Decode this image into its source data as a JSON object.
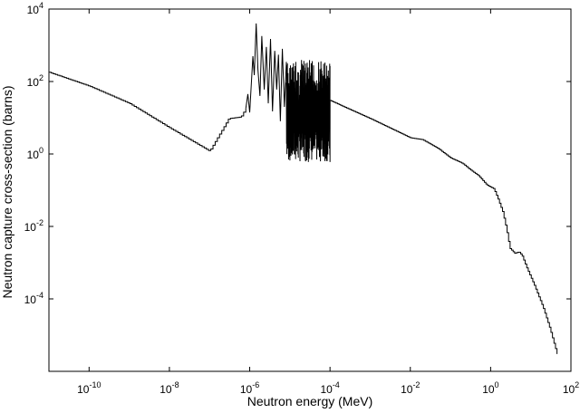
{
  "chart_data": {
    "type": "line",
    "title": "",
    "xlabel": "Neutron energy (MeV)",
    "ylabel": "Neutron capture cross-section (barns)",
    "xscale": "log",
    "yscale": "log",
    "xlim": [
      1e-11,
      100
    ],
    "ylim": [
      1e-06,
      10000
    ],
    "x_ticks": [
      {
        "value": 1e-10,
        "base": "10",
        "exp": "-10"
      },
      {
        "value": 1e-08,
        "base": "10",
        "exp": "-8"
      },
      {
        "value": 1e-06,
        "base": "10",
        "exp": "-6"
      },
      {
        "value": 0.0001,
        "base": "10",
        "exp": "-4"
      },
      {
        "value": 0.01,
        "base": "10",
        "exp": "-2"
      },
      {
        "value": 1,
        "base": "10",
        "exp": "0"
      },
      {
        "value": 100,
        "base": "10",
        "exp": "2"
      }
    ],
    "y_ticks": [
      {
        "value": 0.0001,
        "base": "10",
        "exp": "-4"
      },
      {
        "value": 0.01,
        "base": "10",
        "exp": "-2"
      },
      {
        "value": 1,
        "base": "10",
        "exp": "0"
      },
      {
        "value": 100,
        "base": "10",
        "exp": "2"
      },
      {
        "value": 10000,
        "base": "10",
        "exp": "4"
      }
    ],
    "grid": false,
    "series": [
      {
        "name": "capture cross-section",
        "color": "#000000",
        "smooth_points": [
          [
            1e-11,
            180
          ],
          [
            1e-10,
            75
          ],
          [
            1e-09,
            25
          ],
          [
            1e-08,
            5.3
          ],
          [
            1e-07,
            1.2
          ],
          [
            3e-07,
            9.5
          ],
          [
            6e-07,
            10.5
          ],
          [
            8e-07,
            18
          ]
        ],
        "resonance_region": [
          [
            8e-07,
            18
          ],
          [
            9e-07,
            45
          ],
          [
            1e-06,
            14
          ],
          [
            1.2e-06,
            500
          ],
          [
            1.3e-06,
            150
          ],
          [
            1.45e-06,
            4000
          ],
          [
            1.6e-06,
            220
          ],
          [
            1.8e-06,
            40
          ],
          [
            2e-06,
            1800
          ],
          [
            2.3e-06,
            60
          ],
          [
            2.6e-06,
            900
          ],
          [
            2.9e-06,
            25
          ],
          [
            3.3e-06,
            1500
          ],
          [
            3.7e-06,
            15
          ],
          [
            4.2e-06,
            700
          ],
          [
            4.7e-06,
            60
          ],
          [
            5.2e-06,
            550
          ],
          [
            5.8e-06,
            8
          ],
          [
            6.5e-06,
            800
          ],
          [
            7.3e-06,
            20
          ],
          [
            8.2e-06,
            350
          ]
        ],
        "resonance_dense": {
          "x_range": [
            8.2e-06,
            0.0001
          ],
          "y_low": 0.6,
          "y_high": 400
        },
        "tail_points": [
          [
            0.0001,
            30
          ],
          [
            0.001,
            9.5
          ],
          [
            0.01,
            2.8
          ],
          [
            0.02,
            2.5
          ],
          [
            0.05,
            1.4
          ],
          [
            0.1,
            0.78
          ],
          [
            0.2,
            0.55
          ],
          [
            0.3,
            0.38
          ],
          [
            0.5,
            0.25
          ],
          [
            0.8,
            0.14
          ],
          [
            1.2,
            0.11
          ],
          [
            1.5,
            0.06
          ],
          [
            2.0,
            0.025
          ],
          [
            2.5,
            0.008
          ],
          [
            3.0,
            0.0025
          ],
          [
            4.0,
            0.0018
          ],
          [
            5.0,
            0.002
          ],
          [
            6.0,
            0.0016
          ],
          [
            8.0,
            0.0007
          ],
          [
            12,
            0.00025
          ],
          [
            20,
            6e-05
          ],
          [
            30,
            1.5e-05
          ],
          [
            45,
            3e-06
          ]
        ]
      }
    ]
  }
}
